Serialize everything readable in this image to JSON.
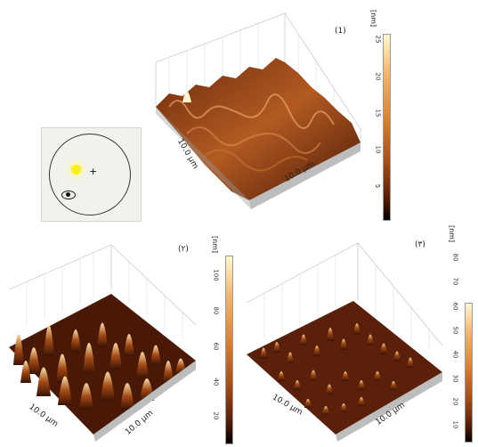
{
  "panels": [
    {
      "id": "p1",
      "label": "(1)",
      "unit": "[nm]",
      "ticks": [
        "25",
        "20",
        "15",
        "10",
        "5"
      ],
      "x_axis": "10.0 µm",
      "y_axis": "10.0 µm"
    },
    {
      "id": "p2",
      "label": "(٢)",
      "unit": "[nm]",
      "ticks": [
        "100",
        "80",
        "60",
        "40",
        "20"
      ],
      "x_axis": "10.0 µm",
      "y_axis": "10.0 µm"
    },
    {
      "id": "p3",
      "label": "(٣)",
      "unit": "[nm]",
      "ticks": [
        "80",
        "70",
        "60",
        "50",
        "40",
        "30",
        "20",
        "10"
      ],
      "x_axis": "10.0 µm",
      "y_axis": "10.0 µm"
    }
  ],
  "colors": {
    "surface_dark": "#3a1204",
    "surface_mid": "#a24a16",
    "surface_light": "#f2c27a",
    "peak": "#fff6d6"
  }
}
